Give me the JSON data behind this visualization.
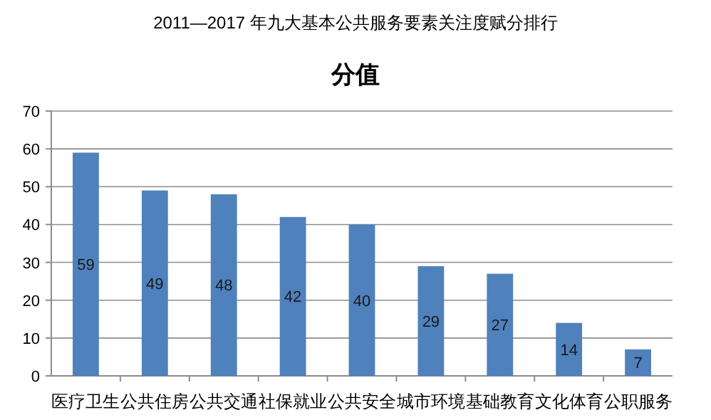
{
  "chart_data": {
    "type": "bar",
    "title": "分值",
    "annotations": [
      "2011—2017 年九大基本公共服务要素关注度赋分排行"
    ],
    "categories": [
      "医疗卫生",
      "公共住房",
      "公共交通",
      "社保就业",
      "公共安全",
      "城市环境",
      "基础教育",
      "文化体育",
      "公职服务"
    ],
    "values": [
      59,
      49,
      48,
      42,
      40,
      29,
      27,
      14,
      7
    ],
    "color": "#4f81bd",
    "ylim": [
      0,
      70
    ],
    "yticks": [
      0,
      10,
      20,
      30,
      40,
      50,
      60,
      70
    ],
    "grid": "y",
    "data_labels": true
  }
}
